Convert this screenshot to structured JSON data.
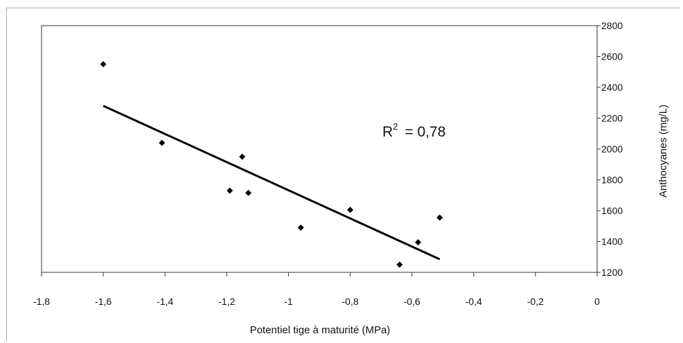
{
  "chart_data": {
    "type": "scatter",
    "xlabel": "Potentiel tige à maturité (MPa)",
    "ylabel": "Anthocyanes (mg/L)",
    "xlim": [
      -1.8,
      0
    ],
    "ylim": [
      1200,
      2800
    ],
    "x_ticks": [
      -1.8,
      -1.6,
      -1.4,
      -1.2,
      -1,
      -0.8,
      -0.6,
      -0.4,
      -0.2,
      0
    ],
    "x_tick_labels": [
      "-1,8",
      "-1,6",
      "-1,4",
      "-1,2",
      "-1",
      "-0,8",
      "-0,6",
      "-0,4",
      "-0,2",
      "0"
    ],
    "y_ticks": [
      1200,
      1400,
      1600,
      1800,
      2000,
      2200,
      2400,
      2600,
      2800
    ],
    "y_tick_labels": [
      "1200",
      "1400",
      "1600",
      "1800",
      "2000",
      "2200",
      "2400",
      "2600",
      "2800"
    ],
    "y_axis_side": "right",
    "grid": false,
    "legend": "none",
    "points": [
      {
        "x": -1.6,
        "y": 2550
      },
      {
        "x": -1.41,
        "y": 2040
      },
      {
        "x": -1.19,
        "y": 1730
      },
      {
        "x": -1.15,
        "y": 1950
      },
      {
        "x": -1.13,
        "y": 1715
      },
      {
        "x": -0.96,
        "y": 1490
      },
      {
        "x": -0.8,
        "y": 1605
      },
      {
        "x": -0.64,
        "y": 1250
      },
      {
        "x": -0.58,
        "y": 1395
      },
      {
        "x": -0.51,
        "y": 1555
      }
    ],
    "trendline": {
      "x1": -1.6,
      "y1": 2280,
      "x2": -0.51,
      "y2": 1285
    },
    "annotation": {
      "text": "R² = 0,78",
      "label": "R",
      "sup": "2",
      "rest": "=  0,78"
    },
    "marker_color": "#000000",
    "line_color": "#000000"
  }
}
